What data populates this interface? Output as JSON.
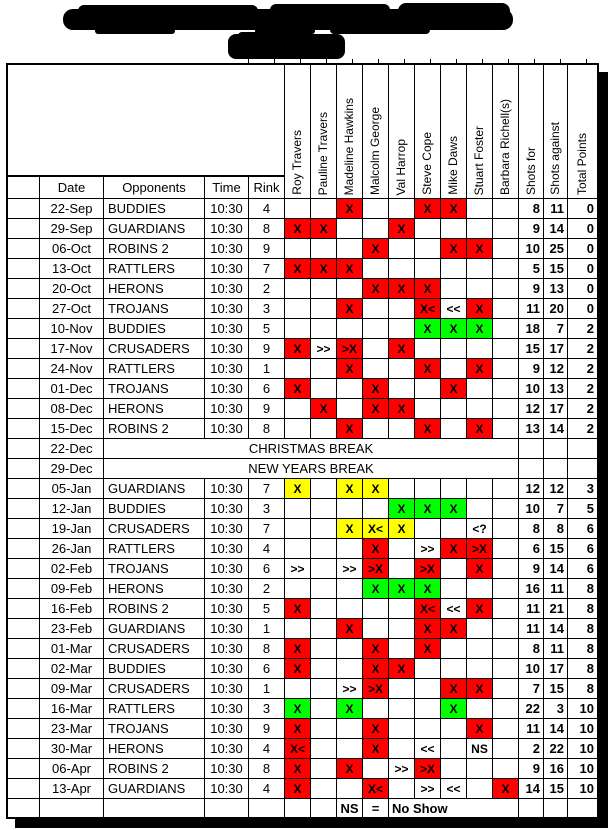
{
  "title": {
    "legible": false,
    "lines": 2,
    "description": "heavily over-printed bold title text (unreadable)"
  },
  "colors": {
    "red": "#FF0000",
    "green": "#00FF00",
    "yellow": "#FFFF00",
    "grid": "#000000"
  },
  "table": {
    "label_headers": [
      "Date",
      "Opponents",
      "Time",
      "Rink"
    ],
    "player_headers": [
      "Roy Travers",
      "Pauline Travers",
      "Madeline Hawkins",
      "Malcolm George",
      "Val Harrop",
      "Steve Cope",
      "Mike Daws",
      "Stuart Foster",
      "Barbara Richell(s)"
    ],
    "stat_headers": [
      "Shots for",
      "Shots against",
      "Total Points"
    ],
    "legend": {
      "code": "NS",
      "eq": "=",
      "meaning": "No Show"
    },
    "rows": [
      {
        "date": "22-Sep",
        "opponent": "BUDDIES",
        "time": "10:30",
        "rink": "4",
        "marks": [
          {
            "i": 2,
            "t": "X",
            "c": "red"
          },
          {
            "i": 5,
            "t": "X",
            "c": "red"
          },
          {
            "i": 6,
            "t": "X",
            "c": "red"
          }
        ],
        "sf": "8",
        "sa": "11",
        "tp": "0"
      },
      {
        "date": "29-Sep",
        "opponent": "GUARDIANS",
        "time": "10:30",
        "rink": "8",
        "marks": [
          {
            "i": 0,
            "t": "X",
            "c": "red"
          },
          {
            "i": 1,
            "t": "X",
            "c": "red"
          },
          {
            "i": 4,
            "t": "X",
            "c": "red"
          }
        ],
        "sf": "9",
        "sa": "14",
        "tp": "0"
      },
      {
        "date": "06-Oct",
        "opponent": "ROBINS 2",
        "time": "10:30",
        "rink": "9",
        "marks": [
          {
            "i": 3,
            "t": "X",
            "c": "red"
          },
          {
            "i": 6,
            "t": "X",
            "c": "red"
          },
          {
            "i": 7,
            "t": "X",
            "c": "red"
          }
        ],
        "sf": "10",
        "sa": "25",
        "tp": "0"
      },
      {
        "date": "13-Oct",
        "opponent": "RATTLERS",
        "time": "10:30",
        "rink": "7",
        "marks": [
          {
            "i": 0,
            "t": "X",
            "c": "red"
          },
          {
            "i": 1,
            "t": "X",
            "c": "red"
          },
          {
            "i": 2,
            "t": "X",
            "c": "red"
          }
        ],
        "sf": "5",
        "sa": "15",
        "tp": "0"
      },
      {
        "date": "20-Oct",
        "opponent": "HERONS",
        "time": "10:30",
        "rink": "2",
        "marks": [
          {
            "i": 3,
            "t": "X",
            "c": "red"
          },
          {
            "i": 4,
            "t": "X",
            "c": "red"
          },
          {
            "i": 5,
            "t": "X",
            "c": "red"
          }
        ],
        "sf": "9",
        "sa": "13",
        "tp": "0"
      },
      {
        "date": "27-Oct",
        "opponent": "TROJANS",
        "time": "10:30",
        "rink": "3",
        "marks": [
          {
            "i": 2,
            "t": "X",
            "c": "red"
          },
          {
            "i": 5,
            "t": "X<",
            "c": "red"
          },
          {
            "i": 6,
            "t": "<<",
            "c": "none"
          },
          {
            "i": 7,
            "t": "X",
            "c": "red"
          }
        ],
        "sf": "11",
        "sa": "20",
        "tp": "0"
      },
      {
        "date": "10-Nov",
        "opponent": "BUDDIES",
        "time": "10:30",
        "rink": "5",
        "marks": [
          {
            "i": 5,
            "t": "X",
            "c": "green"
          },
          {
            "i": 6,
            "t": "X",
            "c": "green"
          },
          {
            "i": 7,
            "t": "X",
            "c": "green"
          }
        ],
        "sf": "18",
        "sa": "7",
        "tp": "2"
      },
      {
        "date": "17-Nov",
        "opponent": "CRUSADERS",
        "time": "10:30",
        "rink": "9",
        "marks": [
          {
            "i": 0,
            "t": "X",
            "c": "red"
          },
          {
            "i": 1,
            "t": ">>",
            "c": "none"
          },
          {
            "i": 2,
            "t": ">X",
            "c": "red"
          },
          {
            "i": 4,
            "t": "X",
            "c": "red"
          }
        ],
        "sf": "15",
        "sa": "17",
        "tp": "2"
      },
      {
        "date": "24-Nov",
        "opponent": "RATTLERS",
        "time": "10:30",
        "rink": "1",
        "marks": [
          {
            "i": 2,
            "t": "X",
            "c": "red"
          },
          {
            "i": 5,
            "t": "X",
            "c": "red"
          },
          {
            "i": 7,
            "t": "X",
            "c": "red"
          }
        ],
        "sf": "9",
        "sa": "12",
        "tp": "2"
      },
      {
        "date": "01-Dec",
        "opponent": "TROJANS",
        "time": "10:30",
        "rink": "6",
        "marks": [
          {
            "i": 0,
            "t": "X",
            "c": "red"
          },
          {
            "i": 3,
            "t": "X",
            "c": "red"
          },
          {
            "i": 6,
            "t": "X",
            "c": "red"
          }
        ],
        "sf": "10",
        "sa": "13",
        "tp": "2"
      },
      {
        "date": "08-Dec",
        "opponent": "HERONS",
        "time": "10:30",
        "rink": "9",
        "marks": [
          {
            "i": 1,
            "t": "X",
            "c": "red"
          },
          {
            "i": 3,
            "t": "X",
            "c": "red"
          },
          {
            "i": 4,
            "t": "X",
            "c": "red"
          }
        ],
        "sf": "12",
        "sa": "17",
        "tp": "2"
      },
      {
        "date": "15-Dec",
        "opponent": "ROBINS 2",
        "time": "10:30",
        "rink": "8",
        "marks": [
          {
            "i": 2,
            "t": "X",
            "c": "red"
          },
          {
            "i": 5,
            "t": "X",
            "c": "red"
          },
          {
            "i": 7,
            "t": "X",
            "c": "red"
          }
        ],
        "sf": "13",
        "sa": "14",
        "tp": "2"
      },
      {
        "date": "22-Dec",
        "break": "CHRISTMAS BREAK"
      },
      {
        "date": "29-Dec",
        "break": "NEW YEARS BREAK"
      },
      {
        "date": "05-Jan",
        "opponent": "GUARDIANS",
        "time": "10:30",
        "rink": "7",
        "marks": [
          {
            "i": 0,
            "t": "X",
            "c": "yellow"
          },
          {
            "i": 2,
            "t": "X",
            "c": "yellow"
          },
          {
            "i": 3,
            "t": "X",
            "c": "yellow"
          }
        ],
        "sf": "12",
        "sa": "12",
        "tp": "3"
      },
      {
        "date": "12-Jan",
        "opponent": "BUDDIES",
        "time": "10:30",
        "rink": "3",
        "marks": [
          {
            "i": 4,
            "t": "X",
            "c": "green"
          },
          {
            "i": 5,
            "t": "X",
            "c": "green"
          },
          {
            "i": 6,
            "t": "X",
            "c": "green"
          }
        ],
        "sf": "10",
        "sa": "7",
        "tp": "5"
      },
      {
        "date": "19-Jan",
        "opponent": "CRUSADERS",
        "time": "10:30",
        "rink": "7",
        "marks": [
          {
            "i": 2,
            "t": "X",
            "c": "yellow"
          },
          {
            "i": 3,
            "t": "X<",
            "c": "yellow"
          },
          {
            "i": 4,
            "t": "X",
            "c": "yellow"
          },
          {
            "i": 7,
            "t": "<?",
            "c": "none"
          }
        ],
        "sf": "8",
        "sa": "8",
        "tp": "6"
      },
      {
        "date": "26-Jan",
        "opponent": "RATTLERS",
        "time": "10:30",
        "rink": "4",
        "marks": [
          {
            "i": 3,
            "t": "X",
            "c": "red"
          },
          {
            "i": 5,
            "t": ">>",
            "c": "none"
          },
          {
            "i": 6,
            "t": "X",
            "c": "red"
          },
          {
            "i": 7,
            "t": ">X",
            "c": "red"
          }
        ],
        "sf": "6",
        "sa": "15",
        "tp": "6"
      },
      {
        "date": "02-Feb",
        "opponent": "TROJANS",
        "time": "10:30",
        "rink": "6",
        "marks": [
          {
            "i": 0,
            "t": ">>",
            "c": "none"
          },
          {
            "i": 2,
            "t": ">>",
            "c": "none"
          },
          {
            "i": 3,
            "t": ">X",
            "c": "red"
          },
          {
            "i": 5,
            "t": ">X",
            "c": "red"
          },
          {
            "i": 7,
            "t": "X",
            "c": "red"
          }
        ],
        "sf": "9",
        "sa": "14",
        "tp": "6"
      },
      {
        "date": "09-Feb",
        "opponent": "HERONS",
        "time": "10:30",
        "rink": "2",
        "marks": [
          {
            "i": 3,
            "t": "X",
            "c": "green"
          },
          {
            "i": 4,
            "t": "X",
            "c": "green"
          },
          {
            "i": 5,
            "t": "X",
            "c": "green"
          }
        ],
        "sf": "16",
        "sa": "11",
        "tp": "8"
      },
      {
        "date": "16-Feb",
        "opponent": "ROBINS 2",
        "time": "10:30",
        "rink": "5",
        "marks": [
          {
            "i": 0,
            "t": "X",
            "c": "red"
          },
          {
            "i": 5,
            "t": "X<",
            "c": "red"
          },
          {
            "i": 6,
            "t": "<<",
            "c": "none"
          },
          {
            "i": 7,
            "t": "X",
            "c": "red"
          }
        ],
        "sf": "11",
        "sa": "21",
        "tp": "8"
      },
      {
        "date": "23-Feb",
        "opponent": "GUARDIANS",
        "time": "10:30",
        "rink": "1",
        "marks": [
          {
            "i": 2,
            "t": "X",
            "c": "red"
          },
          {
            "i": 5,
            "t": "X",
            "c": "red"
          },
          {
            "i": 6,
            "t": "X",
            "c": "red"
          }
        ],
        "sf": "11",
        "sa": "14",
        "tp": "8"
      },
      {
        "date": "01-Mar",
        "opponent": "CRUSADERS",
        "time": "10:30",
        "rink": "8",
        "marks": [
          {
            "i": 0,
            "t": "X",
            "c": "red"
          },
          {
            "i": 3,
            "t": "X",
            "c": "red"
          },
          {
            "i": 5,
            "t": "X",
            "c": "red"
          }
        ],
        "sf": "8",
        "sa": "11",
        "tp": "8"
      },
      {
        "date": "02-Mar",
        "opponent": "BUDDIES",
        "time": "10:30",
        "rink": "6",
        "marks": [
          {
            "i": 0,
            "t": "X",
            "c": "red"
          },
          {
            "i": 3,
            "t": "X",
            "c": "red"
          },
          {
            "i": 4,
            "t": "X",
            "c": "red"
          }
        ],
        "sf": "10",
        "sa": "17",
        "tp": "8"
      },
      {
        "date": "09-Mar",
        "opponent": "CRUSADERS",
        "time": "10:30",
        "rink": "1",
        "marks": [
          {
            "i": 2,
            "t": ">>",
            "c": "none"
          },
          {
            "i": 3,
            "t": ">X",
            "c": "red"
          },
          {
            "i": 6,
            "t": "X",
            "c": "red"
          },
          {
            "i": 7,
            "t": "X",
            "c": "red"
          }
        ],
        "sf": "7",
        "sa": "15",
        "tp": "8"
      },
      {
        "date": "16-Mar",
        "opponent": "RATTLERS",
        "time": "10:30",
        "rink": "3",
        "marks": [
          {
            "i": 0,
            "t": "X",
            "c": "green"
          },
          {
            "i": 2,
            "t": "X",
            "c": "green"
          },
          {
            "i": 6,
            "t": "X",
            "c": "green"
          }
        ],
        "sf": "22",
        "sa": "3",
        "tp": "10"
      },
      {
        "date": "23-Mar",
        "opponent": "TROJANS",
        "time": "10:30",
        "rink": "9",
        "marks": [
          {
            "i": 0,
            "t": "X",
            "c": "red"
          },
          {
            "i": 3,
            "t": "X",
            "c": "red"
          },
          {
            "i": 7,
            "t": "X",
            "c": "red"
          }
        ],
        "sf": "11",
        "sa": "14",
        "tp": "10"
      },
      {
        "date": "30-Mar",
        "opponent": "HERONS",
        "time": "10:30",
        "rink": "4",
        "marks": [
          {
            "i": 0,
            "t": "X<",
            "c": "red"
          },
          {
            "i": 3,
            "t": "X",
            "c": "red"
          },
          {
            "i": 5,
            "t": "<<",
            "c": "none"
          },
          {
            "i": 7,
            "t": "NS",
            "c": "none"
          }
        ],
        "sf": "2",
        "sa": "22",
        "tp": "10"
      },
      {
        "date": "06-Apr",
        "opponent": "ROBINS 2",
        "time": "10:30",
        "rink": "8",
        "marks": [
          {
            "i": 0,
            "t": "X",
            "c": "red"
          },
          {
            "i": 2,
            "t": "X",
            "c": "red"
          },
          {
            "i": 4,
            "t": ">>",
            "c": "none"
          },
          {
            "i": 5,
            "t": ">X",
            "c": "red"
          }
        ],
        "sf": "9",
        "sa": "16",
        "tp": "10"
      },
      {
        "date": "13-Apr",
        "opponent": "GUARDIANS",
        "time": "10:30",
        "rink": "4",
        "marks": [
          {
            "i": 0,
            "t": "X",
            "c": "red"
          },
          {
            "i": 3,
            "t": "X<",
            "c": "red"
          },
          {
            "i": 5,
            "t": ">>",
            "c": "none"
          },
          {
            "i": 6,
            "t": "<<",
            "c": "none"
          },
          {
            "i": 8,
            "t": "X",
            "c": "red"
          }
        ],
        "sf": "14",
        "sa": "15",
        "tp": "10"
      }
    ]
  }
}
